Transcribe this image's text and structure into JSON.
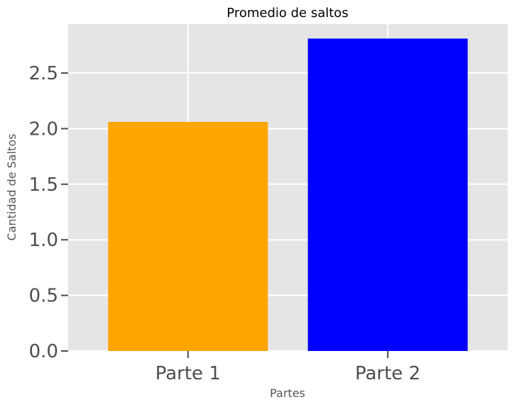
{
  "chart_data": {
    "type": "bar",
    "title": "Promedio de saltos",
    "xlabel": "Partes",
    "ylabel": "Cantidad de Saltos",
    "categories": [
      "Parte 1",
      "Parte 2"
    ],
    "values": [
      2.06,
      2.81
    ],
    "colors": [
      "#FFA500",
      "#0000FF"
    ],
    "ylim": [
      0,
      2.94
    ],
    "yticks": [
      "0.0",
      "0.5",
      "1.0",
      "1.5",
      "2.0",
      "2.5"
    ],
    "grid": true,
    "background": "#E5E5E5",
    "gridColor": "#FFFFFF"
  }
}
